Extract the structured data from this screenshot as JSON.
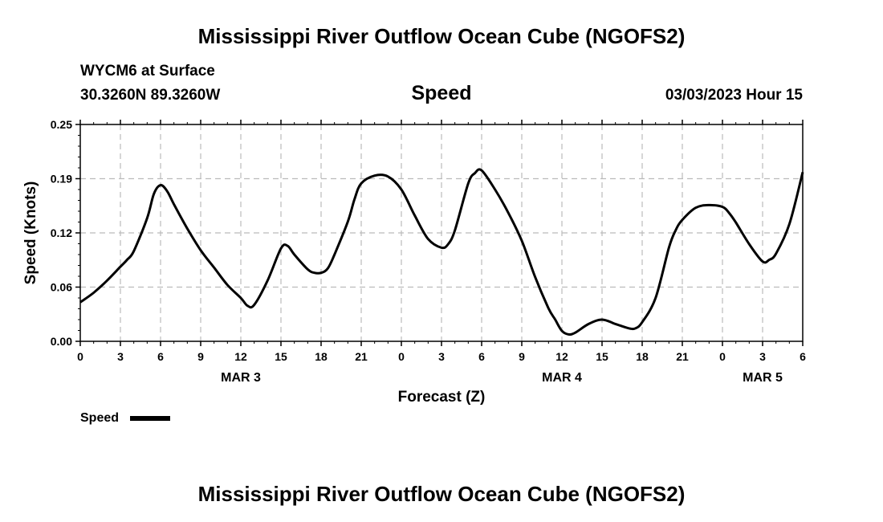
{
  "page": {
    "title_top": "Mississippi River Outflow Ocean Cube (NGOFS2)",
    "title_bottom": "Mississippi River Outflow Ocean Cube (NGOFS2)"
  },
  "chart_data": {
    "type": "line",
    "station": "WYCM6 at Surface",
    "location": "30.3260N  89.3260W",
    "title": "Speed",
    "timestamp": "03/03/2023 Hour 15",
    "xlabel": "Forecast (Z)",
    "ylabel": "Speed (Knots)",
    "ylim": [
      0,
      0.25
    ],
    "xlim": [
      0,
      54
    ],
    "y_ticks": [
      "0.00",
      "0.06",
      "0.12",
      "0.19",
      "0.25"
    ],
    "y_tick_values": [
      0,
      0.0625,
      0.125,
      0.1875,
      0.25
    ],
    "x_ticks": [
      "0",
      "3",
      "6",
      "9",
      "12",
      "15",
      "18",
      "21",
      "0",
      "3",
      "6",
      "9",
      "12",
      "15",
      "18",
      "21",
      "0",
      "3",
      "6"
    ],
    "x_tick_values": [
      0,
      3,
      6,
      9,
      12,
      15,
      18,
      21,
      24,
      27,
      30,
      33,
      36,
      39,
      42,
      45,
      48,
      51,
      54
    ],
    "day_labels": [
      {
        "label": "MAR 3",
        "x": 12
      },
      {
        "label": "MAR 4",
        "x": 36
      },
      {
        "label": "MAR 5",
        "x": 51
      }
    ],
    "grid": true,
    "legend": {
      "label": "Speed",
      "position": "bottom-left"
    },
    "series": [
      {
        "name": "Speed",
        "color": "#000000",
        "x": [
          0,
          1,
          2,
          3,
          3.5,
          4,
          5,
          5.5,
          6,
          6.5,
          7,
          8,
          9,
          10,
          11,
          12,
          12.5,
          13,
          14,
          15,
          15.5,
          16,
          17,
          17.5,
          18,
          18.5,
          19,
          20,
          20.5,
          21,
          22,
          23,
          24,
          25,
          26,
          27,
          27.5,
          28,
          29,
          29.5,
          30,
          31,
          32,
          33,
          34,
          35,
          35.5,
          36,
          36.5,
          37,
          38,
          39,
          40,
          41,
          41.5,
          42,
          43,
          44,
          44.5,
          45,
          46,
          47,
          48,
          48.5,
          49,
          50,
          51,
          51.5,
          52,
          53,
          54
        ],
        "y": [
          0.045,
          0.056,
          0.07,
          0.086,
          0.094,
          0.104,
          0.142,
          0.17,
          0.18,
          0.173,
          0.158,
          0.13,
          0.105,
          0.085,
          0.065,
          0.05,
          0.041,
          0.042,
          0.07,
          0.107,
          0.11,
          0.1,
          0.083,
          0.079,
          0.079,
          0.084,
          0.1,
          0.138,
          0.164,
          0.182,
          0.191,
          0.19,
          0.175,
          0.145,
          0.118,
          0.108,
          0.112,
          0.128,
          0.182,
          0.194,
          0.197,
          0.175,
          0.148,
          0.116,
          0.074,
          0.038,
          0.025,
          0.012,
          0.008,
          0.01,
          0.02,
          0.025,
          0.02,
          0.015,
          0.015,
          0.022,
          0.05,
          0.108,
          0.128,
          0.14,
          0.154,
          0.157,
          0.155,
          0.148,
          0.137,
          0.112,
          0.092,
          0.094,
          0.101,
          0.135,
          0.195
        ]
      }
    ]
  }
}
